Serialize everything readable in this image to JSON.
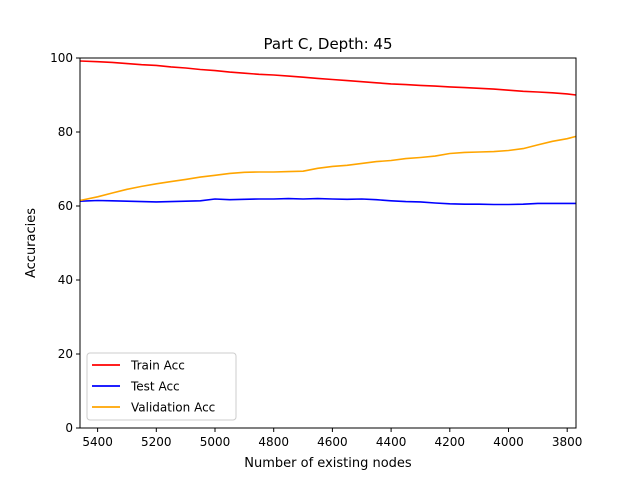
{
  "chart_data": {
    "type": "line",
    "title": "Part C, Depth: 45",
    "xlabel": "Number of existing nodes",
    "ylabel": "Accuracies",
    "x_inverted": true,
    "xlim": [
      5460,
      3770
    ],
    "ylim": [
      0,
      100
    ],
    "xticks": [
      5400,
      5200,
      5000,
      4800,
      4600,
      4400,
      4200,
      4000,
      3800
    ],
    "yticks": [
      0,
      20,
      40,
      60,
      80,
      100
    ],
    "grid": false,
    "legend_position": "lower-left",
    "series": [
      {
        "name": "Train Acc",
        "color": "#ff0000",
        "x": [
          5460,
          5400,
          5350,
          5300,
          5250,
          5200,
          5150,
          5100,
          5050,
          5000,
          4950,
          4900,
          4850,
          4800,
          4750,
          4700,
          4650,
          4600,
          4550,
          4500,
          4450,
          4400,
          4350,
          4300,
          4250,
          4200,
          4150,
          4100,
          4050,
          4000,
          3950,
          3900,
          3850,
          3800,
          3770
        ],
        "y": [
          99.2,
          99.0,
          98.8,
          98.5,
          98.2,
          98.0,
          97.6,
          97.3,
          96.9,
          96.6,
          96.2,
          95.9,
          95.6,
          95.4,
          95.1,
          94.8,
          94.5,
          94.2,
          93.9,
          93.6,
          93.3,
          93.0,
          92.8,
          92.6,
          92.4,
          92.2,
          92.0,
          91.8,
          91.6,
          91.3,
          91.0,
          90.8,
          90.6,
          90.3,
          90.0
        ]
      },
      {
        "name": "Test Acc",
        "color": "#0000ff",
        "x": [
          5460,
          5400,
          5350,
          5300,
          5250,
          5200,
          5150,
          5100,
          5050,
          5000,
          4950,
          4900,
          4850,
          4800,
          4750,
          4700,
          4650,
          4600,
          4550,
          4500,
          4450,
          4400,
          4350,
          4300,
          4250,
          4200,
          4150,
          4100,
          4050,
          4000,
          3950,
          3900,
          3850,
          3800,
          3770
        ],
        "y": [
          61.3,
          61.5,
          61.4,
          61.3,
          61.2,
          61.1,
          61.2,
          61.3,
          61.4,
          61.9,
          61.7,
          61.8,
          61.9,
          61.9,
          62.0,
          61.9,
          62.0,
          61.9,
          61.8,
          61.9,
          61.7,
          61.4,
          61.2,
          61.1,
          60.8,
          60.6,
          60.5,
          60.5,
          60.4,
          60.4,
          60.5,
          60.7,
          60.7,
          60.7,
          60.7
        ]
      },
      {
        "name": "Validation Acc",
        "color": "#ffa500",
        "x": [
          5460,
          5400,
          5350,
          5300,
          5250,
          5200,
          5150,
          5100,
          5050,
          5000,
          4950,
          4900,
          4850,
          4800,
          4750,
          4700,
          4650,
          4600,
          4550,
          4500,
          4450,
          4400,
          4350,
          4300,
          4250,
          4200,
          4150,
          4100,
          4050,
          4000,
          3950,
          3900,
          3850,
          3800,
          3770
        ],
        "y": [
          61.5,
          62.5,
          63.5,
          64.5,
          65.3,
          66.0,
          66.6,
          67.2,
          67.8,
          68.3,
          68.8,
          69.1,
          69.2,
          69.2,
          69.3,
          69.4,
          70.2,
          70.7,
          71.0,
          71.5,
          72.0,
          72.3,
          72.8,
          73.1,
          73.5,
          74.2,
          74.5,
          74.6,
          74.7,
          75.0,
          75.5,
          76.5,
          77.5,
          78.2,
          78.8
        ]
      }
    ]
  }
}
